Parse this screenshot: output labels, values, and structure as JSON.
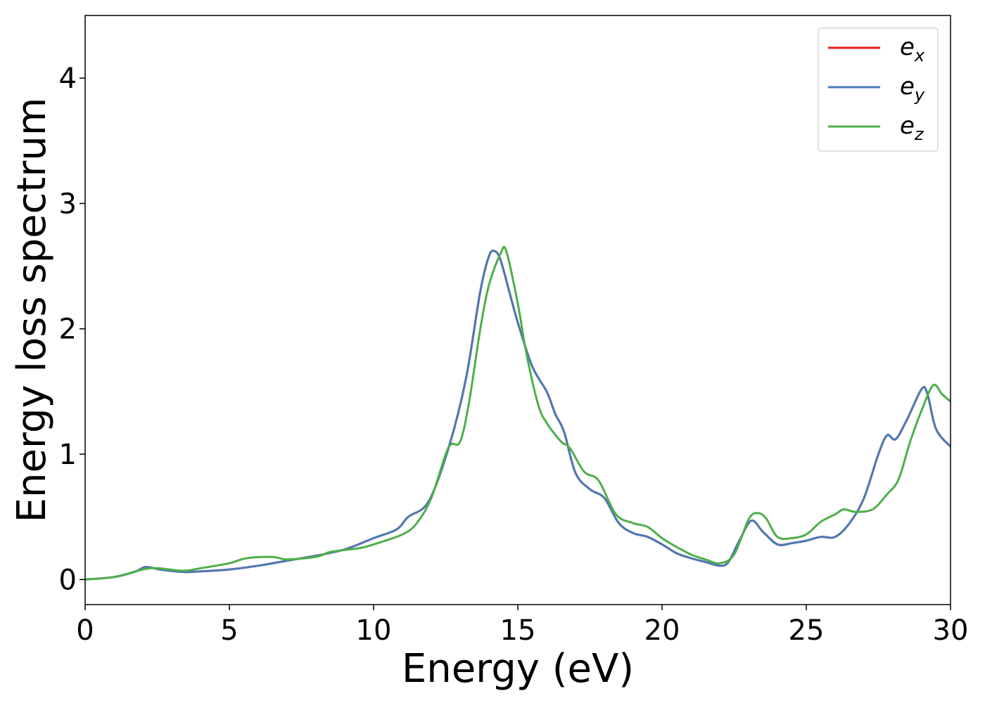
{
  "chart_data": {
    "type": "line",
    "xlabel": "Energy (eV)",
    "ylabel": "Energy loss spectrum",
    "xlim": [
      0,
      30
    ],
    "ylim": [
      -0.2,
      4.5
    ],
    "xticks": [
      0,
      5,
      10,
      15,
      20,
      25,
      30
    ],
    "yticks": [
      0,
      1,
      2,
      3,
      4
    ],
    "grid": false,
    "legend_position": "top-right",
    "series": [
      {
        "name": "e_x",
        "legend_base": "e",
        "legend_sub": "x",
        "color": "#e41a1c",
        "x": [
          0,
          1,
          1.7,
          2.1,
          2.6,
          3.4,
          4.0,
          5.0,
          6.0,
          7.0,
          8.0,
          9.0,
          10.0,
          10.8,
          11.2,
          11.9,
          12.6,
          13.2,
          13.7,
          14.0,
          14.2,
          14.4,
          14.7,
          15.0,
          15.5,
          16.0,
          16.3,
          16.6,
          17.0,
          17.5,
          18.0,
          18.5,
          19.0,
          19.5,
          20.0,
          20.5,
          21.0,
          21.5,
          22.0,
          22.3,
          22.7,
          23.1,
          23.5,
          24.0,
          24.5,
          25.0,
          25.5,
          26.0,
          26.5,
          27.0,
          27.5,
          27.8,
          28.1,
          28.5,
          29.0,
          29.2,
          29.5,
          30.0
        ],
        "values": [
          0.0,
          0.02,
          0.06,
          0.1,
          0.08,
          0.06,
          0.065,
          0.08,
          0.11,
          0.15,
          0.19,
          0.24,
          0.33,
          0.4,
          0.5,
          0.62,
          1.05,
          1.6,
          2.3,
          2.58,
          2.62,
          2.55,
          2.3,
          2.05,
          1.7,
          1.5,
          1.32,
          1.18,
          0.85,
          0.72,
          0.65,
          0.45,
          0.37,
          0.34,
          0.28,
          0.21,
          0.17,
          0.14,
          0.11,
          0.14,
          0.32,
          0.47,
          0.38,
          0.28,
          0.29,
          0.31,
          0.34,
          0.34,
          0.45,
          0.65,
          1.0,
          1.15,
          1.12,
          1.28,
          1.52,
          1.48,
          1.2,
          1.06
        ]
      },
      {
        "name": "e_y",
        "legend_base": "e",
        "legend_sub": "y",
        "color": "#4a7ab5",
        "x": [
          0,
          1,
          1.7,
          2.1,
          2.6,
          3.4,
          4.0,
          5.0,
          6.0,
          7.0,
          8.0,
          9.0,
          10.0,
          10.8,
          11.2,
          11.9,
          12.6,
          13.2,
          13.7,
          14.0,
          14.2,
          14.4,
          14.7,
          15.0,
          15.5,
          16.0,
          16.3,
          16.6,
          17.0,
          17.5,
          18.0,
          18.5,
          19.0,
          19.5,
          20.0,
          20.5,
          21.0,
          21.5,
          22.0,
          22.3,
          22.7,
          23.1,
          23.5,
          24.0,
          24.5,
          25.0,
          25.5,
          26.0,
          26.5,
          27.0,
          27.5,
          27.8,
          28.1,
          28.5,
          29.0,
          29.2,
          29.5,
          30.0
        ],
        "values": [
          0.0,
          0.02,
          0.06,
          0.1,
          0.08,
          0.06,
          0.065,
          0.08,
          0.11,
          0.15,
          0.19,
          0.24,
          0.33,
          0.4,
          0.5,
          0.62,
          1.05,
          1.6,
          2.3,
          2.58,
          2.62,
          2.55,
          2.3,
          2.05,
          1.7,
          1.5,
          1.32,
          1.18,
          0.85,
          0.72,
          0.65,
          0.45,
          0.37,
          0.34,
          0.28,
          0.21,
          0.17,
          0.14,
          0.11,
          0.14,
          0.32,
          0.47,
          0.38,
          0.28,
          0.29,
          0.31,
          0.34,
          0.34,
          0.45,
          0.65,
          1.0,
          1.15,
          1.12,
          1.28,
          1.52,
          1.48,
          1.2,
          1.06
        ]
      },
      {
        "name": "e_z",
        "legend_base": "e",
        "legend_sub": "z",
        "color": "#4daf4a",
        "x": [
          0,
          1,
          2.0,
          2.5,
          3.4,
          4.0,
          5.0,
          5.6,
          6.5,
          7.0,
          8.0,
          8.5,
          9.5,
          10.0,
          11.0,
          11.5,
          12.0,
          12.5,
          12.7,
          13.0,
          13.3,
          13.7,
          14.0,
          14.4,
          14.6,
          15.0,
          15.3,
          15.7,
          16.0,
          16.5,
          16.8,
          17.3,
          17.8,
          18.4,
          19.0,
          19.5,
          20.0,
          20.5,
          21.0,
          21.5,
          22.0,
          22.5,
          23.0,
          23.3,
          23.6,
          24.0,
          24.5,
          25.0,
          25.5,
          26.0,
          26.3,
          26.7,
          27.3,
          27.8,
          28.2,
          28.6,
          29.0,
          29.4,
          29.7,
          30.0
        ],
        "values": [
          0.0,
          0.02,
          0.08,
          0.09,
          0.07,
          0.09,
          0.13,
          0.17,
          0.18,
          0.16,
          0.18,
          0.22,
          0.25,
          0.28,
          0.36,
          0.45,
          0.65,
          1.0,
          1.08,
          1.1,
          1.4,
          2.0,
          2.35,
          2.6,
          2.62,
          2.2,
          1.8,
          1.4,
          1.25,
          1.1,
          1.05,
          0.86,
          0.79,
          0.52,
          0.45,
          0.42,
          0.33,
          0.26,
          0.2,
          0.16,
          0.13,
          0.2,
          0.48,
          0.53,
          0.49,
          0.34,
          0.33,
          0.36,
          0.46,
          0.52,
          0.56,
          0.54,
          0.56,
          0.68,
          0.8,
          1.1,
          1.35,
          1.55,
          1.48,
          1.42
        ]
      }
    ]
  }
}
